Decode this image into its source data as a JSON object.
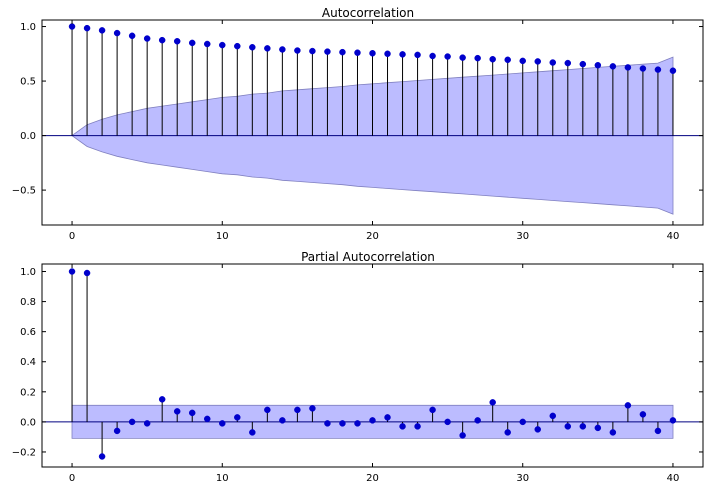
{
  "colors": {
    "marker": "#0000cc",
    "stem": "#000000",
    "zero_line": "#000080",
    "band_fill": "#b8b8ff",
    "band_edge": "#8080c0"
  },
  "chart_data": [
    {
      "type": "stem",
      "title": "Autocorrelation",
      "xlabel": "",
      "ylabel": "",
      "xlim": [
        -2,
        42
      ],
      "ylim": [
        -0.82,
        1.06
      ],
      "xticks": [
        0,
        10,
        20,
        30,
        40
      ],
      "xtick_labels": [
        "0",
        "10",
        "20",
        "30",
        "40"
      ],
      "yticks": [
        -0.5,
        0.0,
        0.5,
        1.0
      ],
      "ytick_labels": [
        "−0.5",
        "0.0",
        "0.5",
        "1.0"
      ],
      "grid": false,
      "lags": [
        0,
        1,
        2,
        3,
        4,
        5,
        6,
        7,
        8,
        9,
        10,
        11,
        12,
        13,
        14,
        15,
        16,
        17,
        18,
        19,
        20,
        21,
        22,
        23,
        24,
        25,
        26,
        27,
        28,
        29,
        30,
        31,
        32,
        33,
        34,
        35,
        36,
        37,
        38,
        39,
        40
      ],
      "values": [
        1.0,
        0.985,
        0.965,
        0.94,
        0.915,
        0.89,
        0.875,
        0.865,
        0.85,
        0.84,
        0.83,
        0.82,
        0.81,
        0.8,
        0.79,
        0.78,
        0.775,
        0.77,
        0.765,
        0.76,
        0.755,
        0.75,
        0.745,
        0.74,
        0.73,
        0.725,
        0.715,
        0.71,
        0.7,
        0.695,
        0.685,
        0.68,
        0.67,
        0.665,
        0.655,
        0.645,
        0.635,
        0.625,
        0.615,
        0.605,
        0.595
      ],
      "confidence_band": [
        0.0,
        0.1,
        0.15,
        0.19,
        0.22,
        0.25,
        0.27,
        0.29,
        0.31,
        0.33,
        0.35,
        0.36,
        0.38,
        0.39,
        0.41,
        0.42,
        0.43,
        0.44,
        0.45,
        0.465,
        0.475,
        0.485,
        0.495,
        0.505,
        0.515,
        0.525,
        0.535,
        0.545,
        0.555,
        0.565,
        0.575,
        0.585,
        0.595,
        0.605,
        0.615,
        0.625,
        0.635,
        0.645,
        0.655,
        0.665,
        0.72
      ]
    },
    {
      "type": "stem",
      "title": "Partial Autocorrelation",
      "xlabel": "",
      "ylabel": "",
      "xlim": [
        -2,
        42
      ],
      "ylim": [
        -0.3,
        1.05
      ],
      "xticks": [
        0,
        10,
        20,
        30,
        40
      ],
      "xtick_labels": [
        "0",
        "10",
        "20",
        "30",
        "40"
      ],
      "yticks": [
        -0.2,
        0.0,
        0.2,
        0.4,
        0.6,
        0.8,
        1.0
      ],
      "ytick_labels": [
        "−0.2",
        "0.0",
        "0.2",
        "0.4",
        "0.6",
        "0.8",
        "1.0"
      ],
      "grid": false,
      "lags": [
        0,
        1,
        2,
        3,
        4,
        5,
        6,
        7,
        8,
        9,
        10,
        11,
        12,
        13,
        14,
        15,
        16,
        17,
        18,
        19,
        20,
        21,
        22,
        23,
        24,
        25,
        26,
        27,
        28,
        29,
        30,
        31,
        32,
        33,
        34,
        35,
        36,
        37,
        38,
        39,
        40
      ],
      "values": [
        1.0,
        0.99,
        -0.23,
        -0.06,
        0.0,
        -0.01,
        0.15,
        0.07,
        0.06,
        0.02,
        -0.01,
        0.03,
        -0.07,
        0.08,
        0.01,
        0.08,
        0.09,
        -0.01,
        -0.01,
        -0.01,
        0.01,
        0.03,
        -0.03,
        -0.03,
        0.08,
        0.0,
        -0.09,
        0.01,
        0.13,
        -0.07,
        0.0,
        -0.05,
        0.04,
        -0.03,
        -0.03,
        -0.04,
        -0.07,
        0.11,
        0.05,
        -0.06,
        0.01
      ],
      "confidence_band": [
        0.11,
        0.11,
        0.11,
        0.11,
        0.11,
        0.11,
        0.11,
        0.11,
        0.11,
        0.11,
        0.11,
        0.11,
        0.11,
        0.11,
        0.11,
        0.11,
        0.11,
        0.11,
        0.11,
        0.11,
        0.11,
        0.11,
        0.11,
        0.11,
        0.11,
        0.11,
        0.11,
        0.11,
        0.11,
        0.11,
        0.11,
        0.11,
        0.11,
        0.11,
        0.11,
        0.11,
        0.11,
        0.11,
        0.11,
        0.11,
        0.11
      ]
    }
  ]
}
